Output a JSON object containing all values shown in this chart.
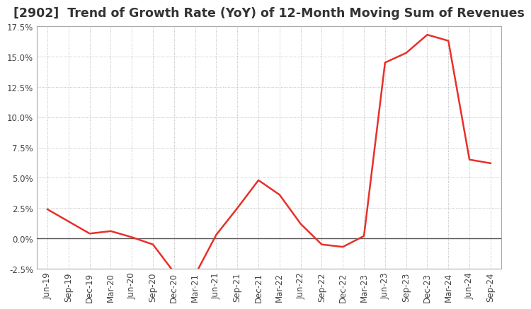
{
  "title": "[2902]  Trend of Growth Rate (YoY) of 12-Month Moving Sum of Revenues",
  "x_labels": [
    "Jun-19",
    "Sep-19",
    "Dec-19",
    "Mar-20",
    "Jun-20",
    "Sep-20",
    "Dec-20",
    "Mar-21",
    "Jun-21",
    "Sep-21",
    "Dec-21",
    "Mar-22",
    "Jun-22",
    "Sep-22",
    "Dec-22",
    "Mar-23",
    "Jun-23",
    "Sep-23",
    "Dec-23",
    "Mar-24",
    "Jun-24",
    "Sep-24"
  ],
  "y_values": [
    2.4,
    1.4,
    0.4,
    0.6,
    0.1,
    -0.5,
    -2.8,
    -3.0,
    0.3,
    2.5,
    4.8,
    3.6,
    1.2,
    -0.5,
    -0.7,
    0.2,
    14.5,
    15.3,
    16.8,
    16.3,
    6.5,
    6.2
  ],
  "ylim": [
    -2.5,
    17.5
  ],
  "yticks": [
    -2.5,
    0.0,
    2.5,
    5.0,
    7.5,
    10.0,
    12.5,
    15.0,
    17.5
  ],
  "line_color": "#e8302a",
  "background_color": "#ffffff",
  "grid_color": "#aaaaaa",
  "zero_line_color": "#555555",
  "title_fontsize": 12.5,
  "tick_fontsize": 8.5
}
